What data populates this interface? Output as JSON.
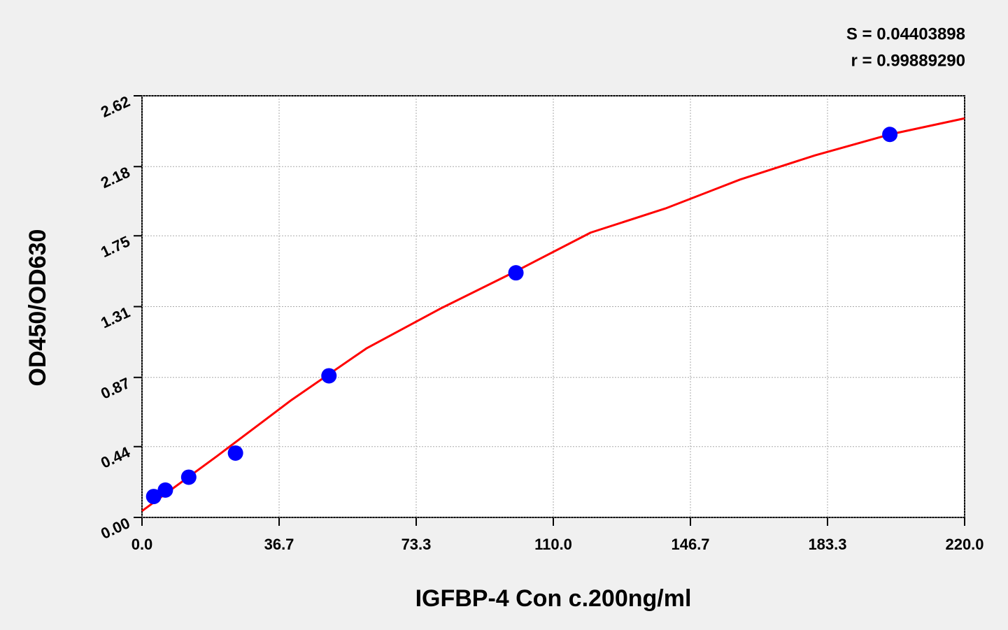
{
  "chart_data": {
    "type": "scatter",
    "annotations": [
      "S = 0.04403898",
      "r = 0.99889290"
    ],
    "x_label": "IGFBP-4 Con c.200ng/ml",
    "y_label": "OD450/OD630",
    "xlim": [
      0,
      220
    ],
    "ylim": [
      0,
      2.62
    ],
    "xticks": [
      {
        "value": 0,
        "label": "0.0"
      },
      {
        "value": 36.67,
        "label": "36.7"
      },
      {
        "value": 73.33,
        "label": "73.3"
      },
      {
        "value": 110,
        "label": "110.0"
      },
      {
        "value": 146.67,
        "label": "146.7"
      },
      {
        "value": 183.33,
        "label": "183.3"
      },
      {
        "value": 220,
        "label": "220.0"
      }
    ],
    "yticks": [
      {
        "value": 0,
        "label": "0.00"
      },
      0.44,
      0.87,
      1.31,
      1.75,
      2.18,
      2.62
    ],
    "grid": true,
    "series": [
      {
        "type": "scatter",
        "color": "#0000ff",
        "x": [
          3.125,
          6.25,
          12.5,
          25,
          50,
          100,
          200
        ],
        "values": [
          0.13,
          0.17,
          0.25,
          0.4,
          0.88,
          1.52,
          2.38
        ]
      },
      {
        "type": "line",
        "color": "#ff0000",
        "x": [
          0,
          20,
          40,
          60,
          80,
          100,
          120,
          140,
          160,
          180,
          200,
          220
        ],
        "values": [
          0.04,
          0.38,
          0.73,
          1.05,
          1.3,
          1.53,
          1.77,
          1.92,
          2.1,
          2.25,
          2.38,
          2.48
        ]
      }
    ]
  }
}
